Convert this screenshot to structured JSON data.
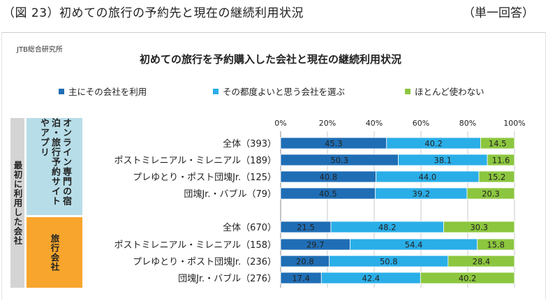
{
  "header": {
    "figure_title": "（図 23）初めての旅行の予約先と現在の継続利用状況",
    "answer_note": "（単一回答）"
  },
  "chart_data": {
    "type": "bar",
    "orientation": "horizontal",
    "stacked": true,
    "source": "JTB総合研究所",
    "title": "初めての旅行を予約購入した会社と現在の継続利用状況",
    "xlabel": "",
    "ylabel": "",
    "xlim": [
      0,
      100
    ],
    "x_ticks": [
      "0%",
      "20%",
      "40%",
      "60%",
      "80%",
      "100%"
    ],
    "legend_position": "top",
    "colors": [
      "#1f6eb5",
      "#2aaee8",
      "#8cc63f"
    ],
    "legend": [
      "主にその会社を利用",
      "その都度よいと思う会社を選ぶ",
      "ほとんど使わない"
    ],
    "row_group_label": "最初に利用した会社",
    "groups": [
      {
        "label": "オンライン専門の宿泊・旅行予約サイトやアプリ",
        "categories": [
          "全体（393）",
          "ポストミレニアル・ミレニアル（189）",
          "プレゆとり・ポスト団塊Jr.（125）",
          "団塊Jr.・バブル（79）"
        ],
        "series": [
          {
            "name": "主にその会社を利用",
            "values": [
              45.3,
              50.3,
              40.8,
              40.5
            ]
          },
          {
            "name": "その都度よいと思う会社を選ぶ",
            "values": [
              40.2,
              38.1,
              44.0,
              39.2
            ]
          },
          {
            "name": "ほとんど使わない",
            "values": [
              14.5,
              11.6,
              15.2,
              20.3
            ]
          }
        ],
        "labels": [
          [
            "45.3",
            "40.2",
            "14.5"
          ],
          [
            "50.3",
            "38.1",
            "11.6"
          ],
          [
            "40.8",
            "44.0",
            "15.2"
          ],
          [
            "40.5",
            "39.2",
            "20.3"
          ]
        ]
      },
      {
        "label": "旅行会社",
        "categories": [
          "全体（670）",
          "ポストミレニアル・ミレニアル（158）",
          "プレゆとり・ポスト団塊Jr.（236）",
          "団塊Jr.・バブル（276）"
        ],
        "series": [
          {
            "name": "主にその会社を利用",
            "values": [
              21.5,
              29.7,
              20.8,
              17.4
            ]
          },
          {
            "name": "その都度よいと思う会社を選ぶ",
            "values": [
              48.2,
              54.4,
              50.8,
              42.4
            ]
          },
          {
            "name": "ほとんど使わない",
            "values": [
              30.3,
              15.8,
              28.4,
              40.2
            ]
          }
        ],
        "labels": [
          [
            "21.5",
            "48.2",
            "30.3"
          ],
          [
            "29.7",
            "54.4",
            "15.8"
          ],
          [
            "20.8",
            "50.8",
            "28.4"
          ],
          [
            "17.4",
            "42.4",
            "40.2"
          ]
        ]
      }
    ]
  }
}
